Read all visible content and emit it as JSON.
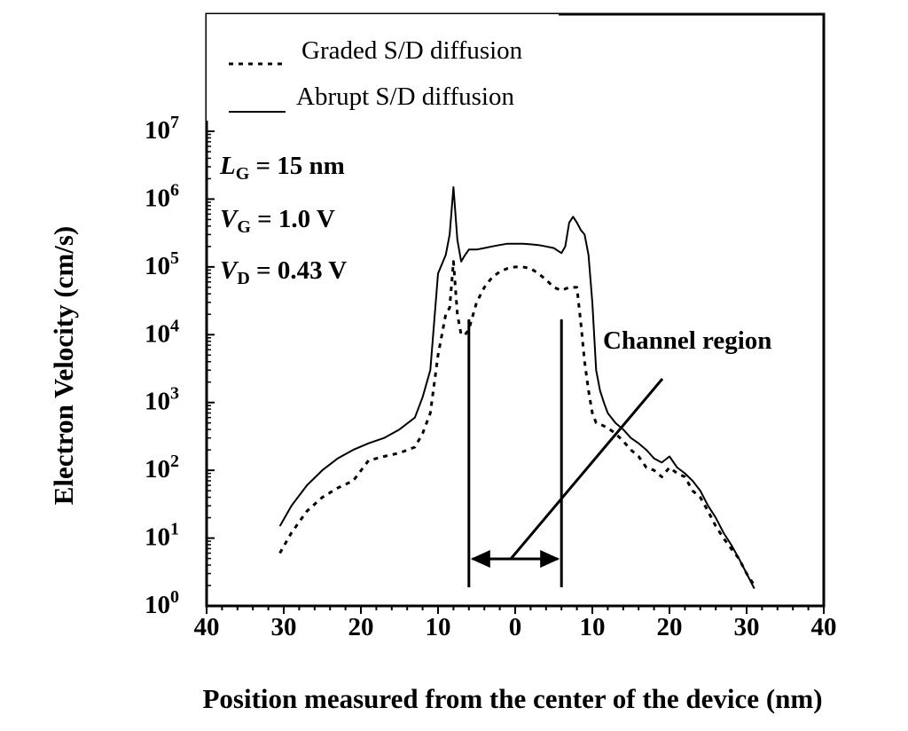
{
  "chart_data": {
    "type": "line",
    "xlabel": "Position measured from the center of the device (nm)",
    "ylabel": "Electron Velocity (cm/s)",
    "xlim": [
      -40,
      40
    ],
    "ylim": [
      1,
      10000000
    ],
    "yscale": "log",
    "x_ticks": [
      -40,
      -30,
      -20,
      -10,
      0,
      10,
      20,
      30,
      40
    ],
    "x_tick_labels": [
      "40",
      "30",
      "20",
      "10",
      "0",
      "10",
      "20",
      "30",
      "40"
    ],
    "y_ticks": [
      {
        "value": 1,
        "base": "10",
        "exp": "0"
      },
      {
        "value": 10,
        "base": "10",
        "exp": "1"
      },
      {
        "value": 100,
        "base": "10",
        "exp": "2"
      },
      {
        "value": 1000,
        "base": "10",
        "exp": "3"
      },
      {
        "value": 10000,
        "base": "10",
        "exp": "4"
      },
      {
        "value": 100000,
        "base": "10",
        "exp": "5"
      },
      {
        "value": 1000000,
        "base": "10",
        "exp": "6"
      },
      {
        "value": 10000000,
        "base": "10",
        "exp": "7"
      }
    ],
    "legend_position": "top",
    "series": [
      {
        "name": "Graded S/D diffusion",
        "style": "dotted",
        "x": [
          -30.5,
          -29,
          -27,
          -25,
          -23,
          -21,
          -19,
          -17,
          -15,
          -13,
          -12,
          -11,
          -10,
          -9,
          -8.5,
          -8,
          -7.5,
          -7,
          -6.5,
          -6,
          -5,
          -4,
          -3,
          -2,
          -1,
          0,
          1,
          2,
          3,
          4,
          5,
          6,
          7,
          8,
          8.5,
          9,
          9.5,
          10,
          10.5,
          11,
          11.5,
          12,
          13,
          14,
          15,
          16,
          17,
          18,
          19,
          20,
          21,
          22,
          23,
          24,
          25,
          26,
          27,
          28,
          29,
          30,
          31
        ],
        "y": [
          6,
          12,
          25,
          40,
          55,
          70,
          140,
          160,
          180,
          220,
          350,
          700,
          5000,
          20000,
          25000,
          120000,
          20000,
          10000,
          10000,
          12000,
          30000,
          50000,
          70000,
          85000,
          95000,
          100000,
          100000,
          95000,
          80000,
          65000,
          50000,
          45000,
          50000,
          50000,
          15000,
          4000,
          1500,
          700,
          500,
          480,
          450,
          420,
          350,
          270,
          200,
          160,
          110,
          100,
          80,
          110,
          90,
          80,
          50,
          40,
          25,
          15,
          10,
          7,
          5,
          3,
          2
        ]
      },
      {
        "name": "Abrupt S/D diffusion",
        "style": "solid",
        "x": [
          -30.5,
          -29,
          -27,
          -25,
          -23,
          -21,
          -19,
          -17,
          -15,
          -13,
          -12,
          -11,
          -10,
          -9,
          -8.5,
          -8,
          -7.5,
          -7,
          -6.5,
          -6,
          -5,
          -4,
          -3,
          -2,
          -1,
          0,
          1,
          2,
          3,
          4,
          5,
          6,
          6.5,
          7,
          7.5,
          8,
          8.5,
          9,
          9.5,
          10,
          10.5,
          11,
          11.5,
          12,
          13,
          14,
          15,
          16,
          17,
          18,
          19,
          20,
          21,
          22,
          23,
          24,
          25,
          26,
          27,
          28,
          29,
          30,
          31
        ],
        "y": [
          15,
          30,
          60,
          100,
          150,
          200,
          250,
          300,
          400,
          600,
          1200,
          3000,
          80000,
          150000,
          300000,
          1500000,
          250000,
          120000,
          150000,
          180000,
          180000,
          190000,
          200000,
          210000,
          220000,
          220000,
          220000,
          215000,
          210000,
          200000,
          190000,
          160000,
          200000,
          450000,
          550000,
          450000,
          350000,
          300000,
          150000,
          30000,
          3000,
          1500,
          1000,
          700,
          500,
          400,
          300,
          250,
          200,
          150,
          130,
          160,
          110,
          90,
          70,
          50,
          30,
          20,
          12,
          8,
          5,
          3,
          1.8
        ]
      }
    ],
    "annotations": {
      "channel_label": "Channel region",
      "LG": {
        "main": "L",
        "sub": "G",
        "rest": " = 15 nm"
      },
      "VG": {
        "main": "V",
        "sub": "G",
        "rest": " = 1.0 V"
      },
      "VD": {
        "main": "V",
        "sub": "D",
        "rest": " = 0.43 V"
      },
      "channel_bounds_x": [
        -6,
        6
      ]
    }
  }
}
